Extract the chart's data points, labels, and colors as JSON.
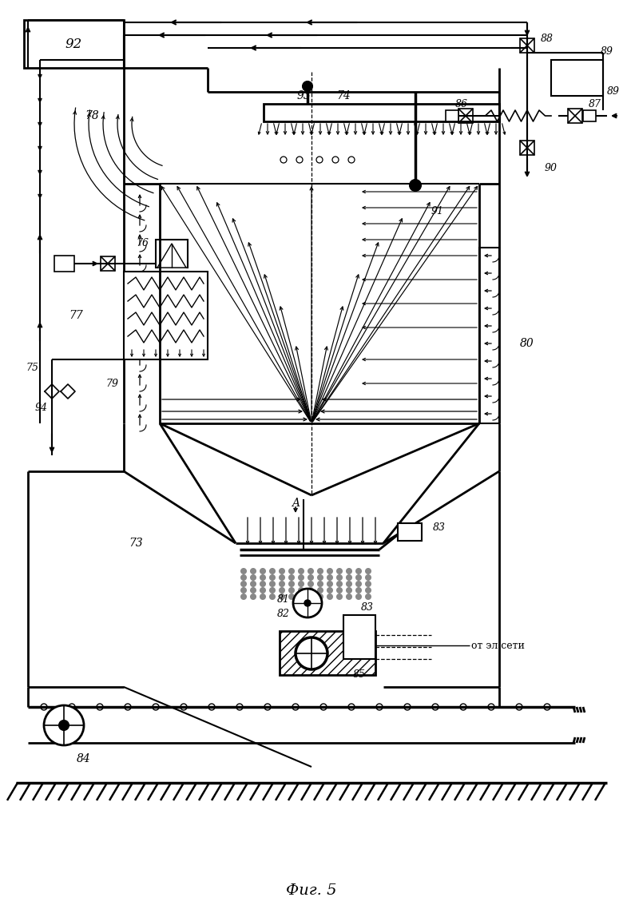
{
  "title": "Фиг. 5",
  "bg_color": "#ffffff",
  "lc": "#000000",
  "fig_width": 7.8,
  "fig_height": 11.53
}
